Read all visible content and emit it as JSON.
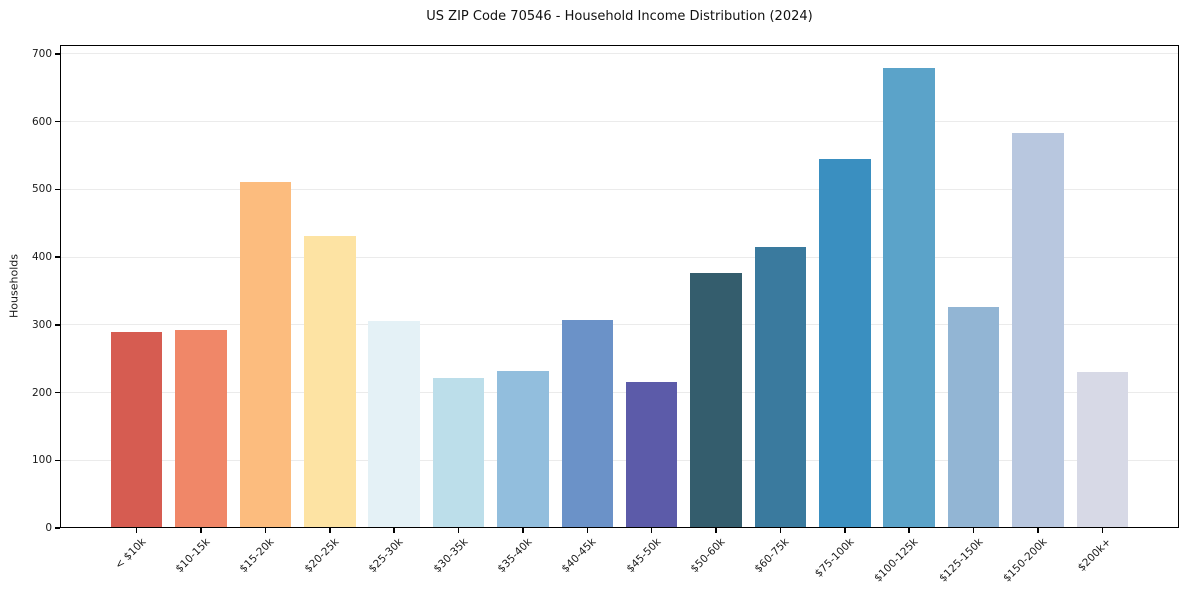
{
  "chart_data": {
    "type": "bar",
    "title": "US ZIP Code 70546 - Household Income Distribution (2024)",
    "xlabel": "",
    "ylabel": "Households",
    "categories": [
      "< $10k",
      "$10-15k",
      "$15-20k",
      "$20-25k",
      "$25-30k",
      "$30-35k",
      "$35-40k",
      "$40-45k",
      "$45-50k",
      "$50-60k",
      "$60-75k",
      "$75-100k",
      "$100-125k",
      "$125-150k",
      "$150-200k",
      "$200k+"
    ],
    "values": [
      290,
      293,
      511,
      431,
      306,
      221,
      232,
      307,
      215,
      377,
      415,
      545,
      679,
      326,
      583,
      230
    ],
    "bar_colors": [
      "#d65c51",
      "#f08768",
      "#fcbc7e",
      "#fde3a3",
      "#e4f1f6",
      "#bcdeea",
      "#92bedd",
      "#6b92c8",
      "#5c5ba9",
      "#345d6d",
      "#3a7a9e",
      "#3a8fc0",
      "#5ba3c9",
      "#92b5d4",
      "#b8c7df",
      "#d7d9e6"
    ],
    "yticks": [
      0,
      100,
      200,
      300,
      400,
      500,
      600,
      700
    ],
    "ylim": [
      0,
      713
    ],
    "grid": "horizontal",
    "legend": "none",
    "x_tick_rotation": 45
  },
  "colors": {
    "background": "#ffffff",
    "grid": "#ebebeb",
    "spine": "#000000",
    "tick": "#000000",
    "text": "#1a1a1a"
  }
}
